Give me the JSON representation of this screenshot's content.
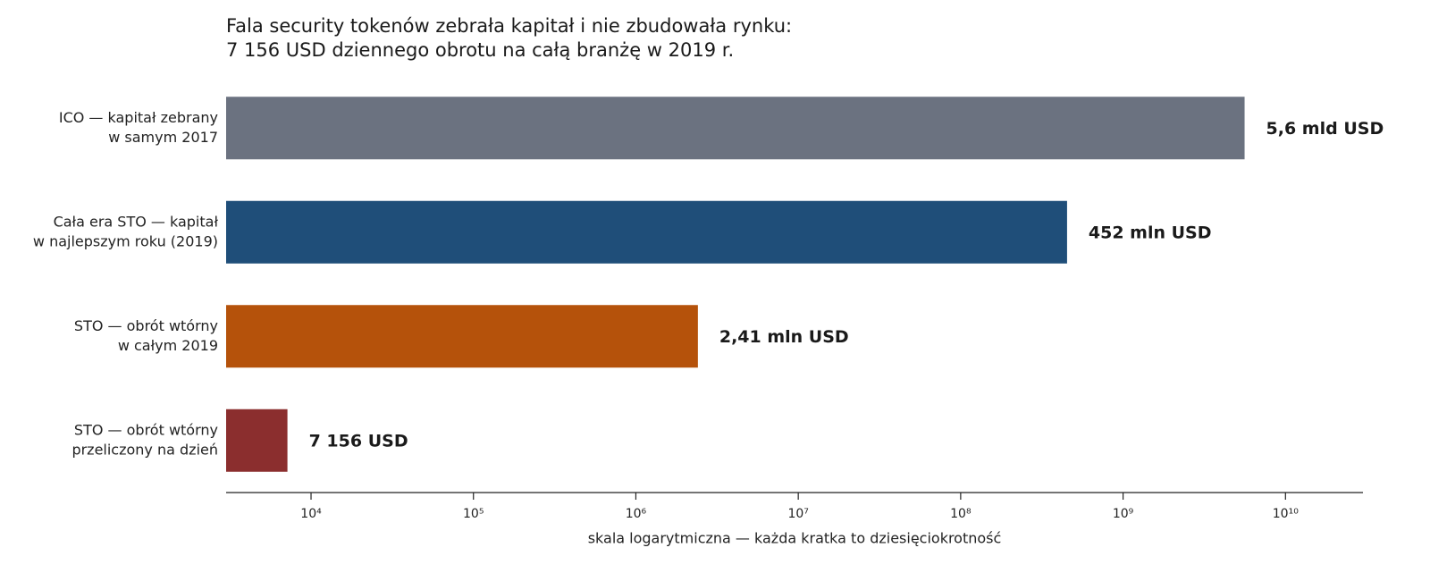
{
  "chart_data": {
    "type": "bar",
    "orientation": "horizontal",
    "title": [
      "Fala security tokenów zebrała kapitał i nie zbudowała rynku:",
      "7 156 USD dziennego obrotu na całą branżę w 2019 r."
    ],
    "categories": [
      [
        "ICO — kapitał zebrany",
        "w samym 2017"
      ],
      [
        "Cała era STO — kapitał",
        "w najlepszym roku (2019)"
      ],
      [
        "STO — obrót wtórny",
        "w całym 2019"
      ],
      [
        "STO — obrót wtórny",
        "przeliczony na dzień"
      ]
    ],
    "values": [
      5600000000,
      452000000,
      2410000,
      7156
    ],
    "value_labels": [
      "5,6 mld USD",
      "452 mln USD",
      "2,41 mln USD",
      "7 156 USD"
    ],
    "colors": [
      "#6b7280",
      "#1f4e79",
      "#b5520b",
      "#8b2e2e"
    ],
    "xscale": "log",
    "xlim": [
      3000,
      30000000000
    ],
    "xticks": [
      {
        "value": 10000,
        "label": "10⁴"
      },
      {
        "value": 100000,
        "label": "10⁵"
      },
      {
        "value": 1000000,
        "label": "10⁶"
      },
      {
        "value": 10000000,
        "label": "10⁷"
      },
      {
        "value": 100000000,
        "label": "10⁸"
      },
      {
        "value": 1000000000,
        "label": "10⁹"
      },
      {
        "value": 10000000000,
        "label": "10¹⁰"
      }
    ],
    "xlabel": "skala logarytmiczna — każda kratka to dziesięciokrotność",
    "grid": false
  }
}
